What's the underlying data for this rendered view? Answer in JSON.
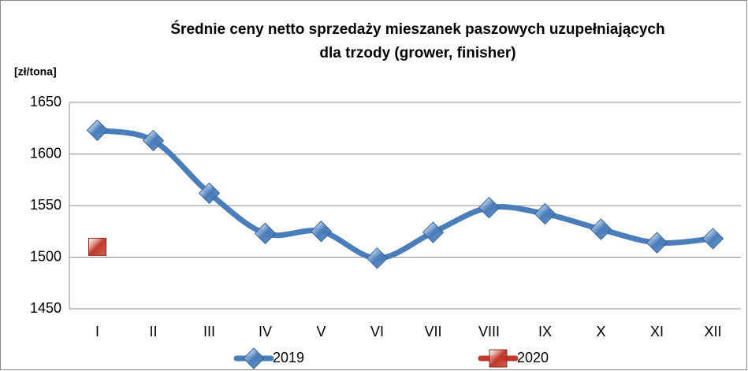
{
  "chart_data": {
    "type": "line",
    "title": "Średnie ceny netto sprzedaży mieszanek paszowych uzupełniających",
    "subtitle": "dla trzody (grower, finisher)",
    "y_label": "[zł/tona]",
    "categories": [
      "I",
      "II",
      "III",
      "IV",
      "V",
      "VI",
      "VII",
      "VIII",
      "IX",
      "X",
      "XI",
      "XII"
    ],
    "series": [
      {
        "name": "2019",
        "color": "#4a7ebb",
        "marker": "diamond",
        "values": [
          1623,
          1613,
          1562,
          1523,
          1525,
          1499,
          1524,
          1548,
          1542,
          1527,
          1514,
          1518
        ]
      },
      {
        "name": "2020",
        "color": "#c0392b",
        "marker": "square",
        "values": [
          1510,
          null,
          null,
          null,
          null,
          null,
          null,
          null,
          null,
          null,
          null,
          null
        ]
      }
    ],
    "ylim": [
      1450,
      1650
    ],
    "yticks": [
      1450,
      1500,
      1550,
      1600,
      1650
    ],
    "grid": true,
    "legend": "bottom"
  }
}
